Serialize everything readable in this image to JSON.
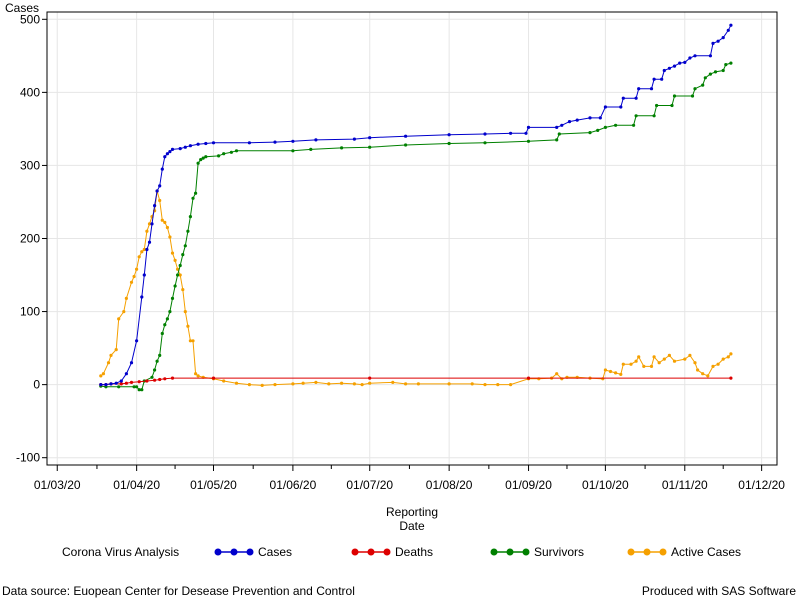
{
  "chart_data": {
    "type": "line",
    "ylabel": "Cases",
    "xlabel_line1": "Reporting",
    "xlabel_line2": "Date",
    "ylim": [
      -110,
      510
    ],
    "y_ticks": [
      -100,
      0,
      100,
      200,
      300,
      400,
      500
    ],
    "xlim": [
      "2020-02-26",
      "2020-12-07"
    ],
    "x_ticks": [
      {
        "date": "2020-03-01",
        "label": "01/03/20"
      },
      {
        "date": "2020-04-01",
        "label": "01/04/20"
      },
      {
        "date": "2020-05-01",
        "label": "01/05/20"
      },
      {
        "date": "2020-06-01",
        "label": "01/06/20"
      },
      {
        "date": "2020-07-01",
        "label": "01/07/20"
      },
      {
        "date": "2020-08-01",
        "label": "01/08/20"
      },
      {
        "date": "2020-09-01",
        "label": "01/09/20"
      },
      {
        "date": "2020-10-01",
        "label": "01/10/20"
      },
      {
        "date": "2020-11-01",
        "label": "01/11/20"
      },
      {
        "date": "2020-12-01",
        "label": "01/12/20"
      }
    ],
    "grid": true,
    "legend_title": "Corona Virus Analysis",
    "legend_position": "bottom",
    "series": [
      {
        "name": "Cases",
        "color": "#0000cc",
        "points": [
          [
            "2020-03-18",
            0
          ],
          [
            "2020-03-20",
            0
          ],
          [
            "2020-03-22",
            1
          ],
          [
            "2020-03-24",
            2
          ],
          [
            "2020-03-26",
            5
          ],
          [
            "2020-03-28",
            15
          ],
          [
            "2020-03-30",
            30
          ],
          [
            "2020-04-01",
            60
          ],
          [
            "2020-04-03",
            120
          ],
          [
            "2020-04-04",
            150
          ],
          [
            "2020-04-05",
            185
          ],
          [
            "2020-04-06",
            195
          ],
          [
            "2020-04-07",
            220
          ],
          [
            "2020-04-08",
            245
          ],
          [
            "2020-04-09",
            265
          ],
          [
            "2020-04-10",
            272
          ],
          [
            "2020-04-11",
            295
          ],
          [
            "2020-04-12",
            312
          ],
          [
            "2020-04-13",
            316
          ],
          [
            "2020-04-14",
            319
          ],
          [
            "2020-04-15",
            322
          ],
          [
            "2020-04-18",
            323
          ],
          [
            "2020-04-20",
            325
          ],
          [
            "2020-04-22",
            327
          ],
          [
            "2020-04-25",
            329
          ],
          [
            "2020-04-28",
            330
          ],
          [
            "2020-05-01",
            331
          ],
          [
            "2020-05-15",
            331
          ],
          [
            "2020-05-25",
            332
          ],
          [
            "2020-06-01",
            333
          ],
          [
            "2020-06-10",
            335
          ],
          [
            "2020-06-25",
            336
          ],
          [
            "2020-07-01",
            338
          ],
          [
            "2020-07-15",
            340
          ],
          [
            "2020-08-01",
            342
          ],
          [
            "2020-08-15",
            343
          ],
          [
            "2020-08-25",
            344
          ],
          [
            "2020-08-31",
            344
          ],
          [
            "2020-09-01",
            352
          ],
          [
            "2020-09-12",
            352
          ],
          [
            "2020-09-14",
            355
          ],
          [
            "2020-09-17",
            360
          ],
          [
            "2020-09-20",
            362
          ],
          [
            "2020-09-25",
            365
          ],
          [
            "2020-09-29",
            365
          ],
          [
            "2020-10-01",
            380
          ],
          [
            "2020-10-07",
            380
          ],
          [
            "2020-10-08",
            392
          ],
          [
            "2020-10-13",
            392
          ],
          [
            "2020-10-14",
            405
          ],
          [
            "2020-10-19",
            405
          ],
          [
            "2020-10-20",
            418
          ],
          [
            "2020-10-23",
            418
          ],
          [
            "2020-10-24",
            430
          ],
          [
            "2020-10-26",
            433
          ],
          [
            "2020-10-28",
            436
          ],
          [
            "2020-10-30",
            440
          ],
          [
            "2020-11-01",
            441
          ],
          [
            "2020-11-03",
            447
          ],
          [
            "2020-11-05",
            450
          ],
          [
            "2020-11-11",
            450
          ],
          [
            "2020-11-12",
            467
          ],
          [
            "2020-11-14",
            470
          ],
          [
            "2020-11-16",
            475
          ],
          [
            "2020-11-18",
            485
          ],
          [
            "2020-11-19",
            492
          ]
        ]
      },
      {
        "name": "Deaths",
        "color": "#dd0000",
        "points": [
          [
            "2020-03-18",
            0
          ],
          [
            "2020-03-20",
            0
          ],
          [
            "2020-03-22",
            1
          ],
          [
            "2020-03-26",
            1
          ],
          [
            "2020-03-28",
            2
          ],
          [
            "2020-03-30",
            3
          ],
          [
            "2020-04-02",
            4
          ],
          [
            "2020-04-05",
            5
          ],
          [
            "2020-04-08",
            6
          ],
          [
            "2020-04-10",
            7
          ],
          [
            "2020-04-12",
            8
          ],
          [
            "2020-04-15",
            9
          ],
          [
            "2020-05-01",
            9
          ],
          [
            "2020-07-01",
            9
          ],
          [
            "2020-09-01",
            9
          ],
          [
            "2020-11-19",
            9
          ]
        ]
      },
      {
        "name": "Survivors",
        "color": "#008000",
        "points": [
          [
            "2020-03-18",
            -2
          ],
          [
            "2020-03-20",
            -3
          ],
          [
            "2020-03-25",
            -3
          ],
          [
            "2020-03-31",
            -3
          ],
          [
            "2020-04-01",
            -3
          ],
          [
            "2020-04-02",
            -7
          ],
          [
            "2020-04-03",
            -7
          ],
          [
            "2020-04-04",
            5
          ],
          [
            "2020-04-07",
            10
          ],
          [
            "2020-04-08",
            20
          ],
          [
            "2020-04-09",
            32
          ],
          [
            "2020-04-10",
            40
          ],
          [
            "2020-04-11",
            70
          ],
          [
            "2020-04-12",
            82
          ],
          [
            "2020-04-13",
            90
          ],
          [
            "2020-04-14",
            100
          ],
          [
            "2020-04-15",
            118
          ],
          [
            "2020-04-16",
            135
          ],
          [
            "2020-04-17",
            150
          ],
          [
            "2020-04-18",
            163
          ],
          [
            "2020-04-19",
            178
          ],
          [
            "2020-04-20",
            190
          ],
          [
            "2020-04-21",
            210
          ],
          [
            "2020-04-22",
            230
          ],
          [
            "2020-04-23",
            255
          ],
          [
            "2020-04-24",
            262
          ],
          [
            "2020-04-25",
            303
          ],
          [
            "2020-04-26",
            308
          ],
          [
            "2020-04-27",
            310
          ],
          [
            "2020-04-28",
            312
          ],
          [
            "2020-05-03",
            313
          ],
          [
            "2020-05-05",
            316
          ],
          [
            "2020-05-08",
            318
          ],
          [
            "2020-05-10",
            320
          ],
          [
            "2020-06-01",
            320
          ],
          [
            "2020-06-08",
            322
          ],
          [
            "2020-06-20",
            324
          ],
          [
            "2020-07-01",
            325
          ],
          [
            "2020-07-15",
            328
          ],
          [
            "2020-08-01",
            330
          ],
          [
            "2020-08-15",
            331
          ],
          [
            "2020-09-01",
            333
          ],
          [
            "2020-09-12",
            335
          ],
          [
            "2020-09-13",
            343
          ],
          [
            "2020-09-25",
            345
          ],
          [
            "2020-09-28",
            348
          ],
          [
            "2020-10-01",
            352
          ],
          [
            "2020-10-05",
            355
          ],
          [
            "2020-10-12",
            355
          ],
          [
            "2020-10-13",
            368
          ],
          [
            "2020-10-20",
            368
          ],
          [
            "2020-10-21",
            382
          ],
          [
            "2020-10-27",
            382
          ],
          [
            "2020-10-28",
            395
          ],
          [
            "2020-11-04",
            395
          ],
          [
            "2020-11-05",
            405
          ],
          [
            "2020-11-08",
            410
          ],
          [
            "2020-11-09",
            420
          ],
          [
            "2020-11-11",
            425
          ],
          [
            "2020-11-13",
            428
          ],
          [
            "2020-11-16",
            430
          ],
          [
            "2020-11-17",
            438
          ],
          [
            "2020-11-19",
            440
          ]
        ]
      },
      {
        "name": "Active Cases",
        "color": "#f5a000",
        "points": [
          [
            "2020-03-18",
            12
          ],
          [
            "2020-03-19",
            15
          ],
          [
            "2020-03-21",
            30
          ],
          [
            "2020-03-22",
            40
          ],
          [
            "2020-03-24",
            48
          ],
          [
            "2020-03-25",
            90
          ],
          [
            "2020-03-27",
            100
          ],
          [
            "2020-03-28",
            118
          ],
          [
            "2020-03-30",
            140
          ],
          [
            "2020-03-31",
            148
          ],
          [
            "2020-04-01",
            158
          ],
          [
            "2020-04-02",
            175
          ],
          [
            "2020-04-03",
            182
          ],
          [
            "2020-04-04",
            185
          ],
          [
            "2020-04-05",
            210
          ],
          [
            "2020-04-06",
            220
          ],
          [
            "2020-04-07",
            230
          ],
          [
            "2020-04-08",
            238
          ],
          [
            "2020-04-09",
            265
          ],
          [
            "2020-04-10",
            252
          ],
          [
            "2020-04-11",
            225
          ],
          [
            "2020-04-12",
            222
          ],
          [
            "2020-04-13",
            215
          ],
          [
            "2020-04-14",
            202
          ],
          [
            "2020-04-15",
            180
          ],
          [
            "2020-04-16",
            170
          ],
          [
            "2020-04-17",
            158
          ],
          [
            "2020-04-18",
            150
          ],
          [
            "2020-04-19",
            130
          ],
          [
            "2020-04-20",
            100
          ],
          [
            "2020-04-21",
            80
          ],
          [
            "2020-04-22",
            60
          ],
          [
            "2020-04-23",
            60
          ],
          [
            "2020-04-24",
            15
          ],
          [
            "2020-04-25",
            12
          ],
          [
            "2020-04-27",
            10
          ],
          [
            "2020-05-01",
            8
          ],
          [
            "2020-05-05",
            5
          ],
          [
            "2020-05-10",
            2
          ],
          [
            "2020-05-15",
            0
          ],
          [
            "2020-05-20",
            -1
          ],
          [
            "2020-05-25",
            0
          ],
          [
            "2020-06-01",
            1
          ],
          [
            "2020-06-05",
            2
          ],
          [
            "2020-06-10",
            3
          ],
          [
            "2020-06-15",
            1
          ],
          [
            "2020-06-20",
            2
          ],
          [
            "2020-06-25",
            1
          ],
          [
            "2020-06-28",
            0
          ],
          [
            "2020-07-01",
            2
          ],
          [
            "2020-07-10",
            3
          ],
          [
            "2020-07-15",
            1
          ],
          [
            "2020-07-20",
            1
          ],
          [
            "2020-08-01",
            1
          ],
          [
            "2020-08-10",
            1
          ],
          [
            "2020-08-15",
            0
          ],
          [
            "2020-08-20",
            0
          ],
          [
            "2020-08-25",
            0
          ],
          [
            "2020-09-01",
            8
          ],
          [
            "2020-09-05",
            8
          ],
          [
            "2020-09-10",
            9
          ],
          [
            "2020-09-12",
            15
          ],
          [
            "2020-09-14",
            8
          ],
          [
            "2020-09-16",
            10
          ],
          [
            "2020-09-20",
            10
          ],
          [
            "2020-09-25",
            9
          ],
          [
            "2020-09-30",
            8
          ],
          [
            "2020-10-01",
            20
          ],
          [
            "2020-10-03",
            18
          ],
          [
            "2020-10-05",
            16
          ],
          [
            "2020-10-07",
            14
          ],
          [
            "2020-10-08",
            28
          ],
          [
            "2020-10-11",
            28
          ],
          [
            "2020-10-13",
            32
          ],
          [
            "2020-10-14",
            38
          ],
          [
            "2020-10-16",
            25
          ],
          [
            "2020-10-19",
            25
          ],
          [
            "2020-10-20",
            38
          ],
          [
            "2020-10-22",
            30
          ],
          [
            "2020-10-24",
            35
          ],
          [
            "2020-10-26",
            40
          ],
          [
            "2020-10-28",
            32
          ],
          [
            "2020-11-01",
            35
          ],
          [
            "2020-11-03",
            40
          ],
          [
            "2020-11-05",
            30
          ],
          [
            "2020-11-06",
            20
          ],
          [
            "2020-11-08",
            15
          ],
          [
            "2020-11-10",
            12
          ],
          [
            "2020-11-12",
            25
          ],
          [
            "2020-11-14",
            28
          ],
          [
            "2020-11-16",
            35
          ],
          [
            "2020-11-18",
            38
          ],
          [
            "2020-11-19",
            42
          ]
        ]
      }
    ]
  },
  "footer": {
    "source": "Data source: Euopean Center for Desease Prevention and Control",
    "produced_by": "Produced with SAS Software"
  }
}
